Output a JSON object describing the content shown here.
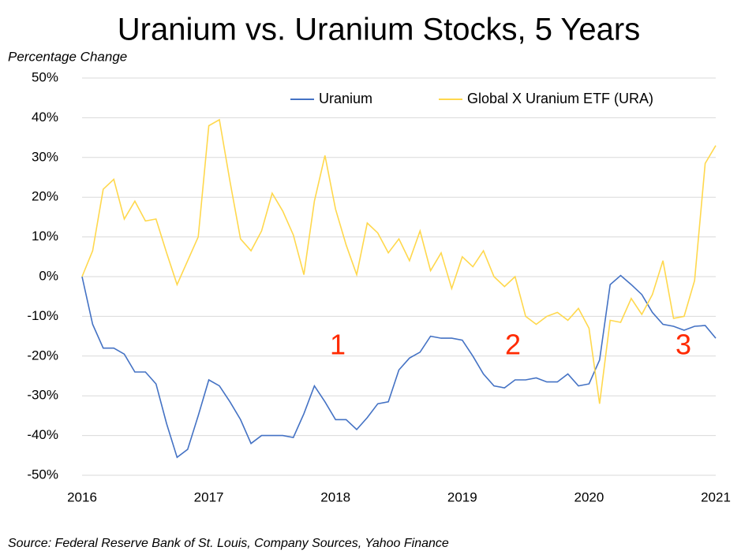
{
  "chart_data": {
    "type": "line",
    "title": "Uranium vs. Uranium Stocks, 5 Years",
    "y_label": "Percentage Change",
    "source": "Source: Federal Reserve Bank of St. Louis, Company Sources, Yahoo Finance",
    "annotations": [
      "1",
      "2",
      "3"
    ],
    "categories": [
      "2016",
      null,
      null,
      null,
      null,
      null,
      null,
      null,
      null,
      null,
      null,
      null,
      "2017",
      null,
      null,
      null,
      null,
      null,
      null,
      null,
      null,
      null,
      null,
      null,
      "2018",
      null,
      null,
      null,
      null,
      null,
      null,
      null,
      null,
      null,
      null,
      null,
      "2019",
      null,
      null,
      null,
      null,
      null,
      null,
      null,
      null,
      null,
      null,
      null,
      "2020",
      null,
      null,
      null,
      null,
      null,
      null,
      null,
      null,
      null,
      null,
      null,
      "2021"
    ],
    "series": [
      {
        "name": "Uranium",
        "color": "#4472c4",
        "values": [
          0,
          -12,
          -18,
          -18,
          -19.5,
          -24,
          -24,
          -27,
          -37,
          -45.5,
          -43.5,
          -35,
          -26,
          -27.5,
          -31.5,
          -36,
          -42,
          -40,
          -40,
          -40,
          -40.5,
          -34.5,
          -27.5,
          -31.5,
          -36,
          -36,
          -38.5,
          -35.5,
          -32,
          -31.5,
          -23.5,
          -20.5,
          -19,
          -15,
          -15.5,
          -15.5,
          -16,
          -20,
          -24.5,
          -27.5,
          -28,
          -26,
          -26,
          -25.5,
          -26.5,
          -26.5,
          -24.5,
          -27.5,
          -27,
          -21,
          -2,
          0.3,
          -2,
          -4.5,
          -9,
          -12,
          -12.5,
          -13.5,
          -12.5,
          -12.3,
          -15.5
        ]
      },
      {
        "name": "Global X Uranium ETF (URA)",
        "color": "#ffd84d",
        "values": [
          0,
          6.5,
          22,
          24.5,
          14.5,
          19,
          14,
          14.5,
          6,
          -2,
          4,
          10,
          38,
          39.5,
          24,
          9.5,
          6.5,
          11.5,
          21,
          16.5,
          10.5,
          0.5,
          19,
          30.5,
          17,
          8,
          0.5,
          13.5,
          11,
          6,
          9.5,
          4,
          11.5,
          1.5,
          6,
          -3,
          5,
          2.5,
          6.5,
          0,
          -2.5,
          0,
          -10,
          -12,
          -10,
          -9,
          -11,
          -8,
          -13,
          -32,
          -11,
          -11.5,
          -5.5,
          -9.5,
          -4.5,
          4,
          -10.5,
          -10,
          -1,
          28.5,
          33
        ]
      }
    ],
    "ylim": [
      -50,
      50
    ],
    "yticks": [
      {
        "value": -50,
        "label": "-50%"
      },
      {
        "value": -40,
        "label": "-40%"
      },
      {
        "value": -30,
        "label": "-30%"
      },
      {
        "value": -20,
        "label": "-20%"
      },
      {
        "value": -10,
        "label": "-10%"
      },
      {
        "value": 0,
        "label": "0%"
      },
      {
        "value": 10,
        "label": "10%"
      },
      {
        "value": 20,
        "label": "20%"
      },
      {
        "value": 30,
        "label": "30%"
      },
      {
        "value": 40,
        "label": "40%"
      },
      {
        "value": 50,
        "label": "50%"
      }
    ],
    "grid": true,
    "legend": "top"
  }
}
